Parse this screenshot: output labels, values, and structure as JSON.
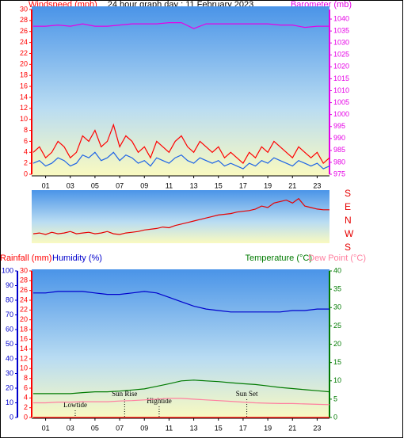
{
  "chart_data": [
    {
      "type": "line",
      "title": "24 hour graph day : 11 February 2023",
      "x": [
        0,
        0.5,
        1,
        1.5,
        2,
        2.5,
        3,
        3.5,
        4,
        4.5,
        5,
        5.5,
        6,
        6.5,
        7,
        7.5,
        8,
        8.5,
        9,
        9.5,
        10,
        10.5,
        11,
        11.5,
        12,
        12.5,
        13,
        13.5,
        14,
        14.5,
        15,
        15.5,
        16,
        16.5,
        17,
        17.5,
        18,
        18.5,
        19,
        19.5,
        20,
        20.5,
        21,
        21.5,
        22,
        22.5,
        23,
        23.5,
        24
      ],
      "xlim": [
        0,
        24
      ],
      "xticks": [
        {
          "value": 1,
          "label": "01"
        },
        {
          "value": 3,
          "label": "03"
        },
        {
          "value": 5,
          "label": "05"
        },
        {
          "value": 7,
          "label": "07"
        },
        {
          "value": 9,
          "label": "09"
        },
        11,
        13,
        15,
        17,
        19,
        21,
        23
      ],
      "ylim": [
        0,
        30
      ],
      "yticks": [
        0,
        2,
        4,
        6,
        8,
        10,
        12,
        14,
        16,
        18,
        20,
        22,
        24,
        26,
        28,
        30
      ],
      "y2lim": [
        975,
        1044
      ],
      "y2ticks": [
        975,
        980,
        985,
        990,
        995,
        1000,
        1005,
        1010,
        1015,
        1020,
        1025,
        1030,
        1035,
        1040
      ],
      "series": [
        {
          "name": "Windspeed (mph)",
          "color": "#ff0000",
          "values": [
            4,
            5,
            3,
            4,
            6,
            5,
            3,
            4,
            7,
            6,
            8,
            5,
            6,
            9,
            5,
            7,
            6,
            4,
            5,
            3,
            6,
            5,
            4,
            6,
            7,
            5,
            4,
            6,
            5,
            4,
            5,
            3,
            4,
            3,
            2,
            4,
            3,
            5,
            4,
            6,
            5,
            4,
            3,
            5,
            4,
            3,
            4,
            2,
            3
          ]
        },
        {
          "color": "#1e64e6",
          "values": [
            2,
            2.5,
            1.5,
            2,
            3,
            2.5,
            1.5,
            2,
            3.5,
            3,
            4,
            2.5,
            3,
            4,
            2.5,
            3.5,
            3,
            2,
            2.5,
            1.5,
            3,
            2.5,
            2,
            3,
            3.5,
            2.5,
            2,
            3,
            2.5,
            2,
            2.5,
            1.5,
            2,
            1.5,
            1,
            2,
            1.5,
            2.5,
            2,
            3,
            2.5,
            2,
            1.5,
            2.5,
            2,
            1.5,
            2,
            1,
            1.5
          ]
        },
        {
          "name": "Barometer (mb)",
          "color": "#e600e6",
          "axis": "y2",
          "x": [
            0,
            1,
            2,
            3,
            4,
            5,
            6,
            7,
            8,
            9,
            10,
            11,
            12,
            13,
            14,
            15,
            16,
            17,
            18,
            19,
            20,
            21,
            22,
            23,
            24
          ],
          "values": [
            1037,
            1037,
            1037.5,
            1037,
            1038,
            1037,
            1037,
            1037.5,
            1038,
            1038,
            1038,
            1038.5,
            1038.5,
            1036,
            1038,
            1038,
            1038,
            1038,
            1038,
            1038,
            1037.5,
            1037.5,
            1036.5,
            1037,
            1037
          ]
        }
      ]
    },
    {
      "type": "line",
      "x": [
        0,
        0.5,
        1,
        1.5,
        2,
        2.5,
        3,
        3.5,
        4,
        4.5,
        5,
        5.5,
        6,
        6.5,
        7,
        7.5,
        8,
        8.5,
        9,
        9.5,
        10,
        10.5,
        11,
        11.5,
        12,
        12.5,
        13,
        13.5,
        14,
        14.5,
        15,
        15.5,
        16,
        16.5,
        17,
        17.5,
        18,
        18.5,
        19,
        19.5,
        20,
        20.5,
        21,
        21.5,
        22,
        22.5,
        23,
        23.5,
        24
      ],
      "xlim": [
        0,
        24
      ],
      "ylim": [
        -180,
        180
      ],
      "yticks": [
        {
          "value": 180,
          "label": "S"
        },
        {
          "value": 90,
          "label": "E"
        },
        {
          "value": 0,
          "label": "N"
        },
        {
          "value": -90,
          "label": "W"
        },
        {
          "value": -180,
          "label": "S"
        }
      ],
      "series": [
        {
          "color": "#e60000",
          "values": [
            -85,
            -80,
            -90,
            -75,
            -85,
            -80,
            -70,
            -85,
            -80,
            -75,
            -85,
            -80,
            -70,
            -85,
            -90,
            -80,
            -75,
            -70,
            -60,
            -55,
            -50,
            -40,
            -45,
            -30,
            -20,
            -10,
            0,
            10,
            20,
            30,
            40,
            45,
            50,
            60,
            65,
            70,
            80,
            100,
            90,
            120,
            130,
            140,
            120,
            150,
            100,
            90,
            80,
            75,
            75
          ]
        }
      ]
    },
    {
      "type": "line",
      "x": [
        0,
        1,
        2,
        3,
        4,
        5,
        6,
        7,
        8,
        9,
        10,
        11,
        12,
        13,
        14,
        15,
        16,
        17,
        18,
        19,
        20,
        21,
        22,
        23,
        24
      ],
      "xlim": [
        0,
        24
      ],
      "xticks": [
        {
          "value": 1,
          "label": "01"
        },
        {
          "value": 3,
          "label": "03"
        },
        {
          "value": 5,
          "label": "05"
        },
        {
          "value": 7,
          "label": "07"
        },
        {
          "value": 9,
          "label": "09"
        },
        11,
        13,
        15,
        17,
        19,
        21,
        23
      ],
      "ylim": [
        0,
        30
      ],
      "yticks": [
        0,
        2,
        4,
        6,
        8,
        10,
        12,
        14,
        16,
        18,
        20,
        22,
        24,
        26,
        28,
        30
      ],
      "y2lim": [
        0,
        40
      ],
      "y2ticks": [
        0,
        5,
        10,
        15,
        20,
        25,
        30,
        35,
        40
      ],
      "y3lim": [
        0,
        100
      ],
      "y3ticks": [
        0,
        10,
        20,
        30,
        40,
        50,
        60,
        70,
        80,
        90,
        100
      ],
      "series": [
        {
          "name": "Rainfall (mm)",
          "color": "#ff0000",
          "values": [
            0,
            0,
            0,
            0,
            0,
            0,
            0,
            0,
            0,
            0,
            0,
            0,
            0,
            0,
            0,
            0,
            0,
            0,
            0,
            0,
            0,
            0,
            0,
            0,
            0
          ]
        },
        {
          "name": "Humidity (%)",
          "color": "#0000cc",
          "axis": "y3",
          "values": [
            85,
            85,
            86,
            86,
            86,
            85,
            84,
            84,
            85,
            86,
            85,
            82,
            79,
            76,
            74,
            73,
            72,
            72,
            72,
            72,
            72,
            73,
            73,
            74,
            74
          ]
        },
        {
          "name": "Temperature (°C)",
          "color": "#007a00",
          "axis": "y2",
          "values": [
            6.5,
            6.5,
            6.5,
            6.5,
            6.8,
            7,
            7,
            7.2,
            7.5,
            7.8,
            8.5,
            9.2,
            10,
            10.2,
            10,
            9.8,
            9.5,
            9.2,
            9,
            8.6,
            8.2,
            7.9,
            7.6,
            7.3,
            7
          ]
        },
        {
          "name": "Dew Point (°C)",
          "color": "#ff7f9f",
          "axis": "y2",
          "values": [
            4,
            4,
            4.2,
            4.2,
            4.3,
            4.3,
            4.3,
            4.5,
            4.6,
            4.8,
            5,
            5.2,
            5.2,
            5,
            4.8,
            4.6,
            4.4,
            4.2,
            4,
            3.9,
            3.8,
            3.8,
            3.7,
            3.6,
            3.5
          ]
        }
      ],
      "annotations": [
        {
          "text": "Lowtide",
          "x": 3.4
        },
        {
          "text": "Sun Rise",
          "x": 7.4
        },
        {
          "text": "Hightide",
          "x": 10.2
        },
        {
          "text": "Sun Set",
          "x": 17.3
        }
      ]
    }
  ]
}
